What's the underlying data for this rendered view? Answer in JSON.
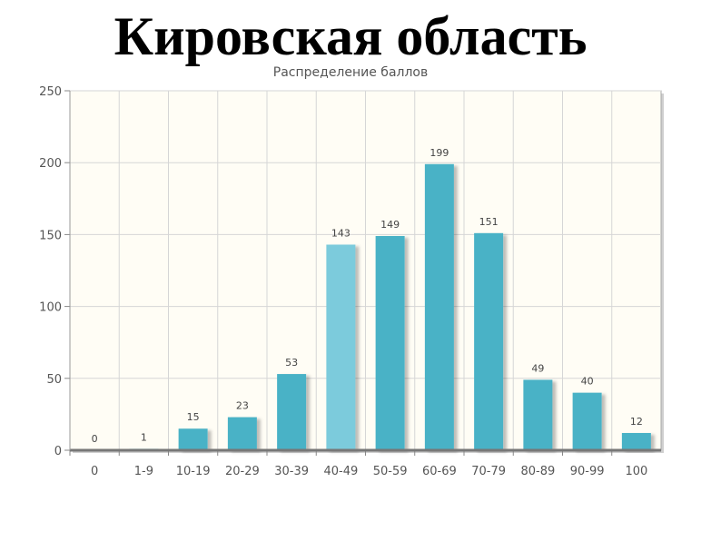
{
  "header": {
    "title": "Кировская область"
  },
  "chart_data": {
    "type": "bar",
    "title": "Распределение баллов",
    "xlabel": "",
    "ylabel": "",
    "categories": [
      "0",
      "1-9",
      "10-19",
      "20-29",
      "30-39",
      "40-49",
      "50-59",
      "60-69",
      "70-79",
      "80-89",
      "90-99",
      "100"
    ],
    "values": [
      0,
      1,
      15,
      23,
      53,
      143,
      149,
      199,
      151,
      49,
      40,
      12
    ],
    "data_labels": [
      "0",
      "1",
      "15",
      "23",
      "53",
      "143",
      "149",
      "199",
      "151",
      "49",
      "40",
      "12"
    ],
    "ylim": [
      0,
      250
    ],
    "yticks": [
      0,
      50,
      100,
      150,
      200,
      250
    ],
    "ytick_labels": [
      "0",
      "50",
      "100",
      "150",
      "200",
      "250"
    ],
    "grid": true,
    "colors": {
      "bar": "#4ab2c6",
      "bar_highlight": "#7bcbdc",
      "plot_background": "#fffdf5",
      "grid": "#d6d6d6",
      "axis": "#888888"
    },
    "highlight_index": 5
  }
}
